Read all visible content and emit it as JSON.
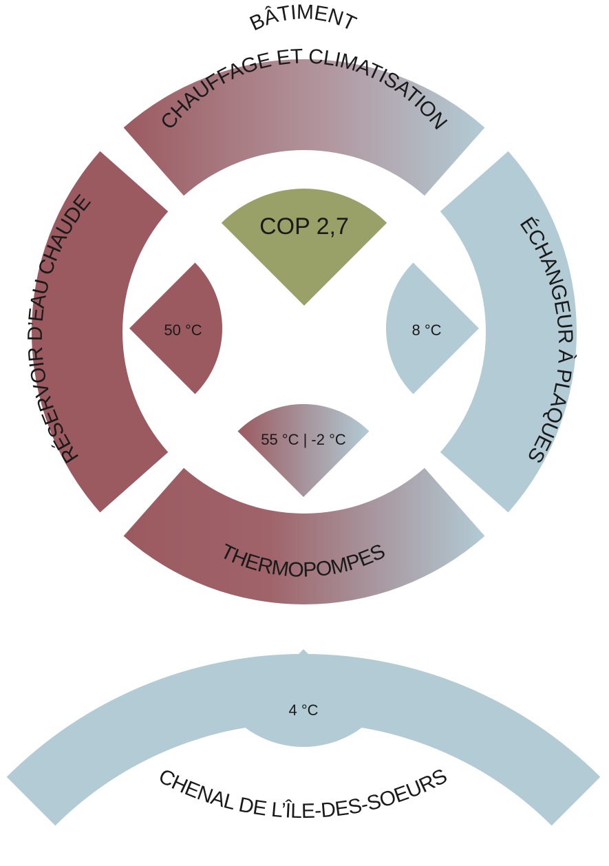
{
  "colors": {
    "hot": "#9b5a60",
    "cold": "#b2cbd5",
    "cop": "#99a068",
    "background": "#ffffff"
  },
  "segments": {
    "building_line1": "BÂTIMENT",
    "building_line2": "CHAUFFAGE ET CLIMATISATION",
    "hot_tank": "RÉSERVOIR D’EAU CHAUDE",
    "exchanger": "ÉCHANGEUR À PLAQUES",
    "heat_pumps": "THERMOPOMPES",
    "channel": "CHENAL DE L’ÎLE-DES-SOEURS"
  },
  "wedges": {
    "cop": "COP 2,7",
    "hot_temp": "50 °C",
    "cold_temp": "8 °C",
    "pump_temp": "55 °C | -2 °C",
    "channel_temp": "4 °C"
  }
}
